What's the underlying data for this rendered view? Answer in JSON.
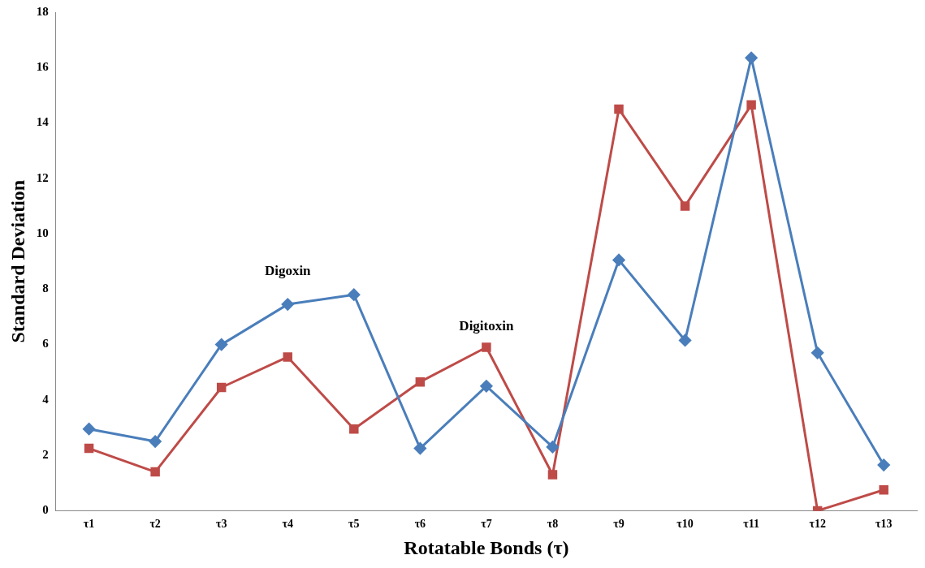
{
  "chart_data": {
    "type": "line",
    "xlabel": "Rotatable Bonds (τ)",
    "ylabel": "Standard Deviation",
    "categories": [
      "τ1",
      "τ2",
      "τ3",
      "τ4",
      "τ5",
      "τ6",
      "τ7",
      "τ8",
      "τ9",
      "τ10",
      "τ11",
      "τ12",
      "τ13"
    ],
    "series": [
      {
        "name": "Digoxin",
        "color": "#4a7ebb",
        "marker": "diamond",
        "values": [
          2.95,
          2.5,
          6.0,
          7.45,
          7.8,
          2.25,
          4.5,
          2.3,
          9.05,
          6.15,
          16.35,
          5.7,
          1.65
        ]
      },
      {
        "name": "Digitoxin",
        "color": "#be4b48",
        "marker": "square",
        "values": [
          2.25,
          1.4,
          4.45,
          5.55,
          2.95,
          4.65,
          5.9,
          1.3,
          14.5,
          11.0,
          14.65,
          0.0,
          0.75
        ]
      }
    ],
    "ylim": [
      0,
      18
    ],
    "yticks": [
      0,
      2,
      4,
      6,
      8,
      10,
      12,
      14,
      16,
      18
    ],
    "grid": false,
    "legend": false,
    "line_style": "solid"
  }
}
